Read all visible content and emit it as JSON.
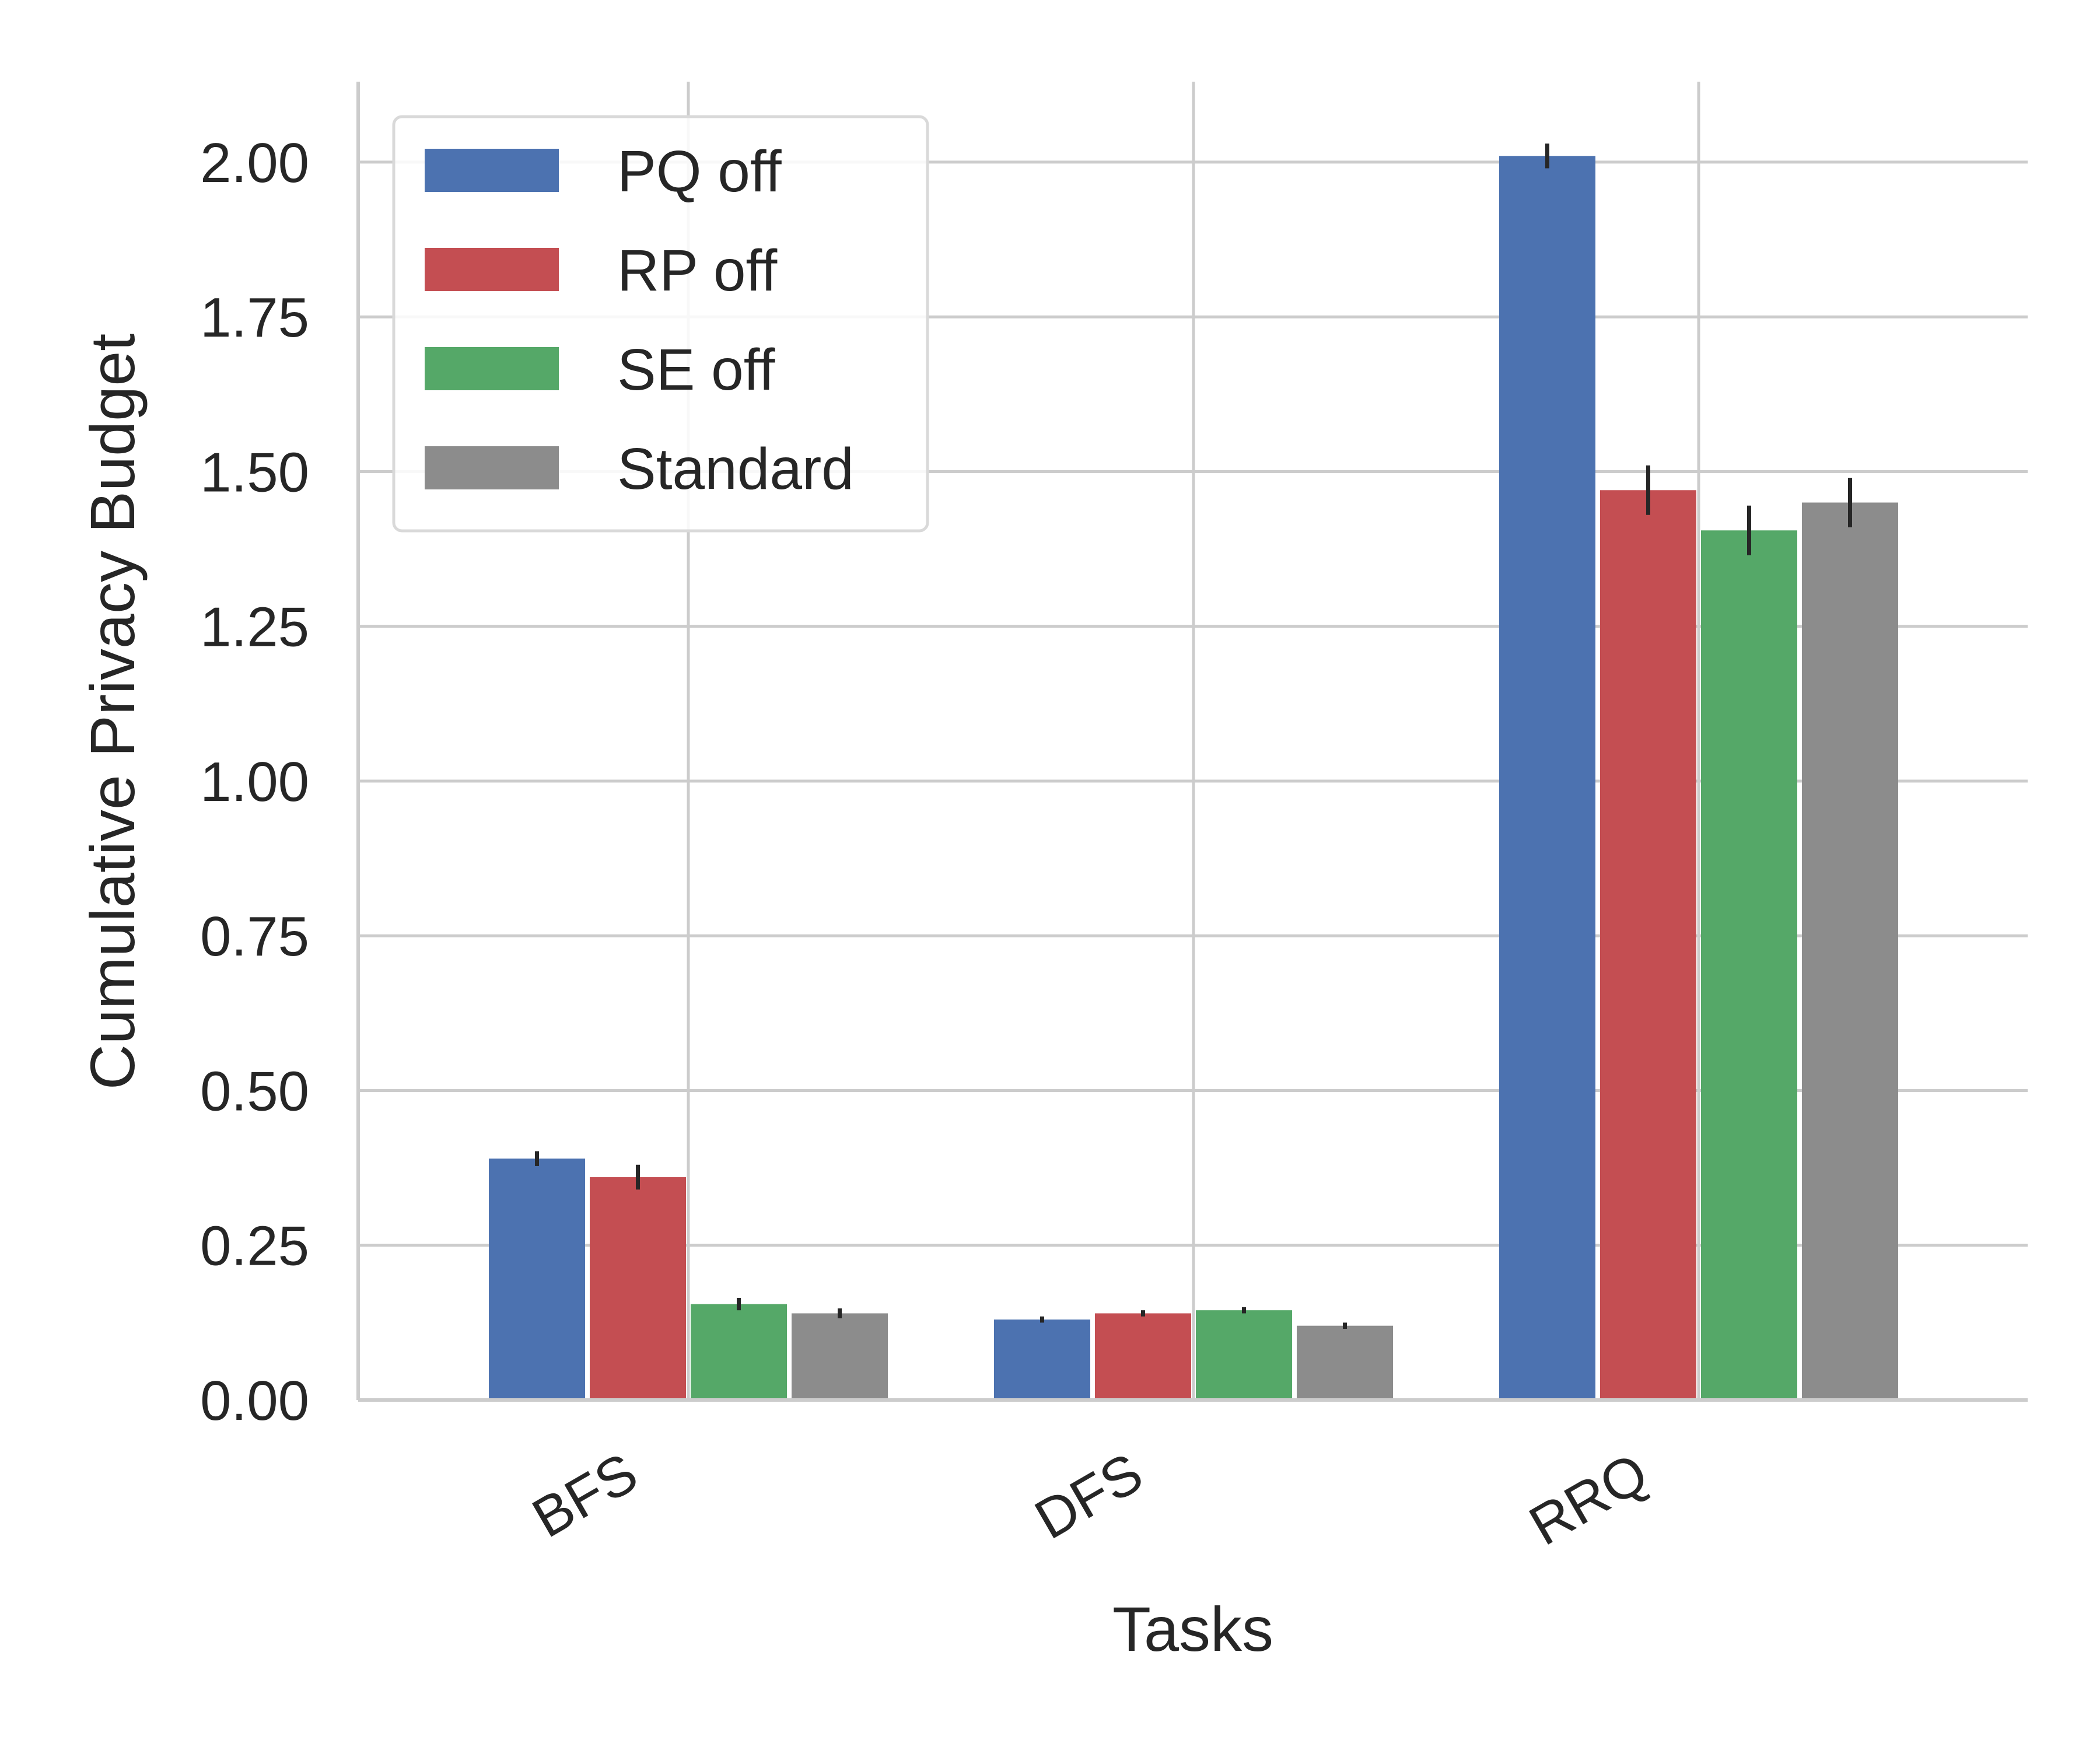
{
  "chart_data": {
    "type": "bar",
    "title": "",
    "xlabel": "Tasks",
    "ylabel": "Cumulative Privacy Budget",
    "categories": [
      "BFS",
      "DFS",
      "RRQ"
    ],
    "ylim": [
      0,
      2.13
    ],
    "yticks": [
      "0.00",
      "0.25",
      "0.50",
      "0.75",
      "1.00",
      "1.25",
      "1.50",
      "1.75",
      "2.00"
    ],
    "grid": true,
    "legend_position": "top-left",
    "series": [
      {
        "name": "PQ off",
        "color": "#4c72b0",
        "values": [
          0.39,
          0.13,
          2.01
        ],
        "errors": [
          0.012,
          0.005,
          0.02
        ]
      },
      {
        "name": "RP off",
        "color": "#c44e52",
        "values": [
          0.36,
          0.14,
          1.47
        ],
        "errors": [
          0.02,
          0.005,
          0.04
        ]
      },
      {
        "name": "SE off",
        "color": "#55a868",
        "values": [
          0.155,
          0.145,
          1.405
        ],
        "errors": [
          0.01,
          0.005,
          0.04
        ]
      },
      {
        "name": "Standard",
        "color": "#8c8c8c",
        "values": [
          0.14,
          0.12,
          1.45
        ],
        "errors": [
          0.008,
          0.005,
          0.04
        ]
      }
    ]
  }
}
